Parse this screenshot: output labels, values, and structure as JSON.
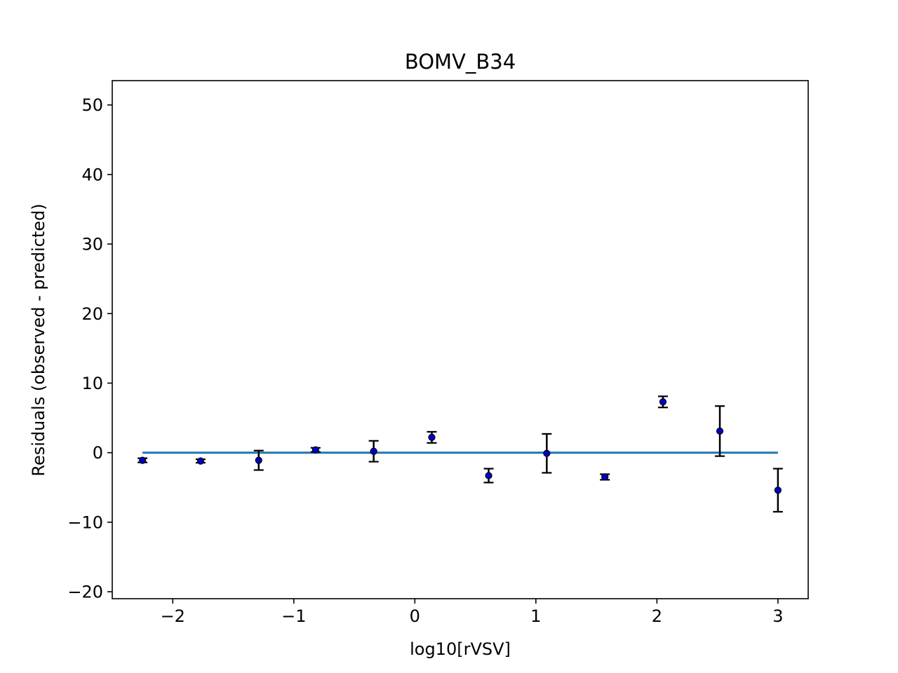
{
  "chart_data": {
    "type": "scatter",
    "title": "BOMV_B34",
    "xlabel": "log10[rVSV]",
    "ylabel": "Residuals (observed - predicted)",
    "xlim": [
      -2.5,
      3.25
    ],
    "ylim": [
      -21,
      53.5
    ],
    "xticks": [
      -2,
      -1,
      0,
      1,
      2,
      3
    ],
    "xtick_labels": [
      "−2",
      "−1",
      "0",
      "1",
      "2",
      "3"
    ],
    "yticks": [
      -20,
      -10,
      0,
      10,
      20,
      30,
      40,
      50
    ],
    "ytick_labels": [
      "−20",
      "−10",
      "0",
      "10",
      "20",
      "30",
      "40",
      "50"
    ],
    "grid": false,
    "reference_line": {
      "x": [
        -2.25,
        3.0
      ],
      "y": [
        0,
        0
      ],
      "color": "#1f77b4"
    },
    "points": {
      "marker_color": "#0000cc",
      "errorbar_color": "#000000",
      "x": [
        -2.25,
        -1.77,
        -1.29,
        -0.82,
        -0.34,
        0.14,
        0.61,
        1.09,
        1.57,
        2.05,
        2.52,
        3.0
      ],
      "y": [
        -1.1,
        -1.2,
        -1.1,
        0.4,
        0.2,
        2.2,
        -3.3,
        -0.1,
        -3.5,
        7.3,
        3.1,
        -5.4
      ],
      "err": [
        0.3,
        0.25,
        1.4,
        0.3,
        1.5,
        0.8,
        1.0,
        2.8,
        0.4,
        0.8,
        3.6,
        3.1
      ]
    },
    "colors": {
      "axes": "#000000",
      "line": "#1f77b4",
      "marker": "#0000cc",
      "background": "#ffffff"
    }
  }
}
